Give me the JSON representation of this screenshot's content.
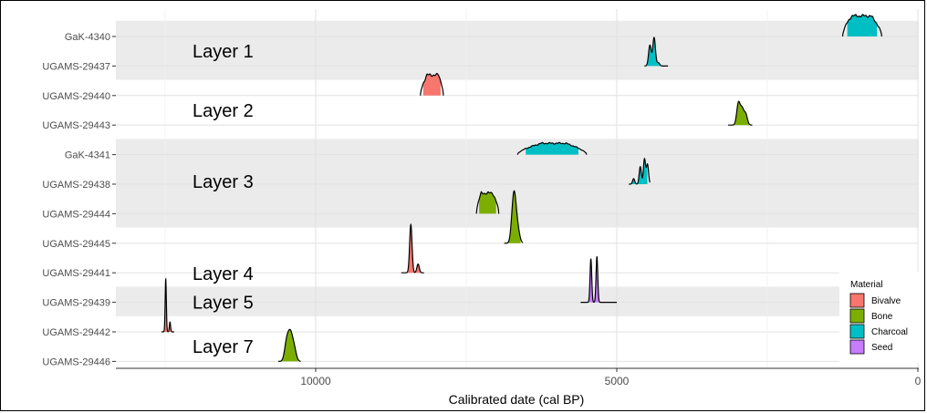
{
  "chart_data": {
    "type": "area",
    "xlabel": "Calibrated date (cal BP)",
    "ylabel": "",
    "x_reversed": true,
    "xlim": [
      0,
      13000
    ],
    "x_ticks": [
      10000,
      5000,
      0
    ],
    "x_tick_labels": [
      "10000",
      "5000",
      "0"
    ],
    "grid": true,
    "legend": {
      "title": "Material",
      "position": "bottom-right",
      "entries": [
        {
          "name": "Bivalve",
          "color": "#F8766D"
        },
        {
          "name": "Bone",
          "color": "#7CAE00"
        },
        {
          "name": "Charcoal",
          "color": "#00BFC4"
        },
        {
          "name": "Seed",
          "color": "#C77CFF"
        }
      ]
    },
    "categories": [
      "GaK-4340",
      "UGAMS-29437",
      "UGAMS-29440",
      "UGAMS-29443",
      "GaK-4341",
      "UGAMS-29438",
      "UGAMS-29444",
      "UGAMS-29445",
      "UGAMS-29441",
      "UGAMS-29439",
      "UGAMS-29442",
      "UGAMS-29446"
    ],
    "layers": [
      {
        "label": "Layer 1",
        "rows": [
          "GaK-4340",
          "UGAMS-29437"
        ],
        "shaded": true
      },
      {
        "label": "Layer 2",
        "rows": [
          "UGAMS-29440",
          "UGAMS-29443"
        ],
        "shaded": false
      },
      {
        "label": "Layer 3",
        "rows": [
          "GaK-4341",
          "UGAMS-29438",
          "UGAMS-29444"
        ],
        "shaded": true
      },
      {
        "label": "Layer 4",
        "rows": [
          "UGAMS-29445",
          "UGAMS-29441"
        ],
        "shaded": false
      },
      {
        "label": "Layer 5",
        "rows": [
          "UGAMS-29439"
        ],
        "shaded": true
      },
      {
        "label": "Layer 7",
        "rows": [
          "UGAMS-29442",
          "UGAMS-29446"
        ],
        "shaded": false
      }
    ],
    "series": [
      {
        "name": "GaK-4340",
        "material": "Charcoal",
        "shape": "plateau",
        "range": [
          600,
          1250
        ],
        "core": [
          780,
          1100
        ],
        "peak": 1.0
      },
      {
        "name": "UGAMS-29437",
        "material": "Charcoal",
        "shape": "spikes",
        "range": [
          4150,
          4540
        ],
        "spikes": [
          [
            4450,
            0.95
          ],
          [
            4380,
            1.3
          ],
          [
            4310,
            0.15
          ]
        ],
        "width": 22
      },
      {
        "name": "UGAMS-29440",
        "material": "Bivalve",
        "shape": "plateau",
        "range": [
          7880,
          8260
        ],
        "core": [
          7960,
          8150
        ],
        "peak": 1.0
      },
      {
        "name": "UGAMS-29443",
        "material": "Bone",
        "shape": "spikes",
        "range": [
          2750,
          3150
        ],
        "spikes": [
          [
            2980,
            1.0
          ],
          [
            2920,
            0.7
          ],
          [
            2860,
            0.5
          ]
        ],
        "width": 28
      },
      {
        "name": "GaK-4341",
        "material": "Charcoal",
        "shape": "plateau",
        "range": [
          5500,
          6650
        ],
        "core": [
          5850,
          6250
        ],
        "peak": 0.55
      },
      {
        "name": "UGAMS-29438",
        "material": "Charcoal",
        "shape": "spikes",
        "range": [
          4450,
          4800
        ],
        "spikes": [
          [
            4720,
            0.25
          ],
          [
            4610,
            0.8
          ],
          [
            4540,
            1.15
          ],
          [
            4490,
            0.9
          ]
        ],
        "width": 18
      },
      {
        "name": "UGAMS-29444",
        "material": "Bone",
        "shape": "plateau",
        "range": [
          6960,
          7330
        ],
        "core": [
          7060,
          7250
        ],
        "peak": 1.0
      },
      {
        "name": "UGAMS-29445",
        "material": "Bone",
        "shape": "spikes",
        "range": [
          6560,
          6870
        ],
        "spikes": [
          [
            6720,
            1.4
          ],
          [
            6690,
            1.2
          ],
          [
            6640,
            0.5
          ]
        ],
        "width": 32
      },
      {
        "name": "UGAMS-29441",
        "material": "Bivalve",
        "shape": "spikes",
        "range": [
          8200,
          8580
        ],
        "spikes": [
          [
            8420,
            2.2
          ],
          [
            8300,
            0.4
          ]
        ],
        "width": 20
      },
      {
        "name": "UGAMS-29439",
        "material": "Seed",
        "shape": "spikes",
        "range": [
          5000,
          5600
        ],
        "spikes": [
          [
            5430,
            2.0
          ],
          [
            5330,
            2.1
          ]
        ],
        "width": 14
      },
      {
        "name": "UGAMS-29442",
        "material": "Bivalve",
        "shape": "spikes",
        "range": [
          12350,
          12560
        ],
        "spikes": [
          [
            12490,
            2.4
          ],
          [
            12420,
            0.45
          ]
        ],
        "width": 10
      },
      {
        "name": "UGAMS-29446",
        "material": "Bone",
        "shape": "spikes",
        "range": [
          10250,
          10620
        ],
        "spikes": [
          [
            10480,
            0.9
          ],
          [
            10420,
            1.1
          ],
          [
            10360,
            0.6
          ]
        ],
        "width": 35
      }
    ]
  }
}
